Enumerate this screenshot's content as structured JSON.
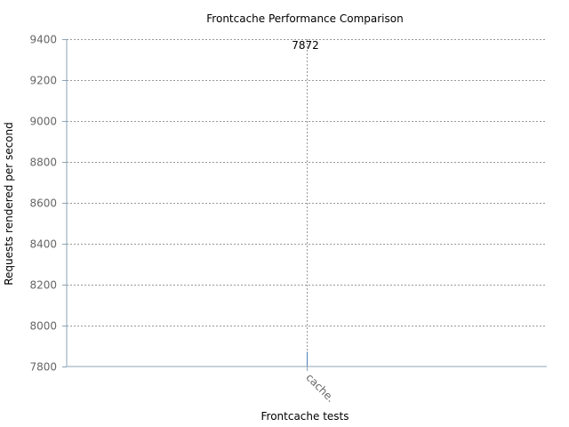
{
  "chart_data": {
    "type": "bar",
    "title": "Frontcache Performance Comparison",
    "xlabel": "Frontcache tests",
    "ylabel": "Requests rendered per second",
    "categories": [
      "cache."
    ],
    "values": [
      7872
    ],
    "data_labels": [
      "7872"
    ],
    "ylim": [
      7800,
      9400
    ],
    "yticks": [
      7800,
      8000,
      8200,
      8400,
      8600,
      8800,
      9000,
      9200,
      9400
    ],
    "grid": true,
    "bar_color": "#4f81bd",
    "grid_color": "#999999",
    "axis_color": "#8ea4b6"
  }
}
